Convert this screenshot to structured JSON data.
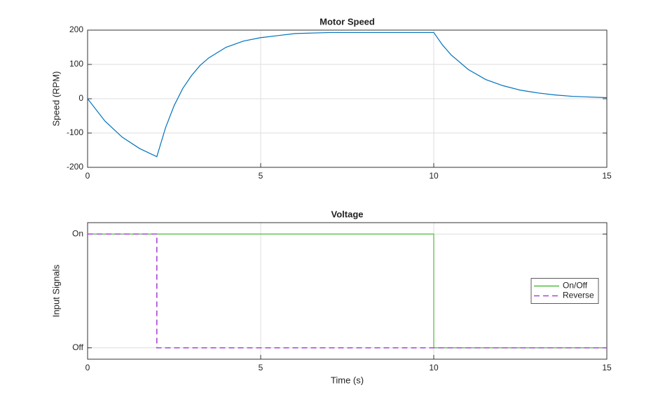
{
  "chart_data": [
    {
      "type": "line",
      "title": "Motor Speed",
      "ylabel": "Speed (RPM)",
      "x": [
        0,
        0.5,
        1,
        1.5,
        2,
        2.25,
        2.5,
        2.75,
        3,
        3.25,
        3.5,
        4,
        4.5,
        5,
        5.5,
        6,
        7,
        8,
        9,
        10,
        10.25,
        10.5,
        11,
        11.5,
        12,
        12.5,
        13,
        13.5,
        14,
        14.5,
        15
      ],
      "series": [
        {
          "color": "#0072bd",
          "values": [
            0,
            -65,
            -112,
            -145,
            -169,
            -85,
            -20,
            30,
            67,
            97,
            119,
            150,
            168,
            178,
            184,
            190,
            193,
            193,
            193,
            193,
            157,
            128,
            85,
            56,
            38,
            25,
            17,
            11,
            7,
            5,
            3
          ]
        }
      ],
      "xlim": [
        0,
        15
      ],
      "xticks": [
        0,
        5,
        10,
        15
      ],
      "ylim": [
        -200,
        200
      ],
      "yticks": [
        -200,
        -100,
        0,
        100,
        200
      ],
      "grid": true
    },
    {
      "type": "line",
      "title": "Voltage",
      "xlabel": "Time (s)",
      "ylabel": "Input Signals",
      "series": [
        {
          "name": "On/Off",
          "color": "#4dbe3c",
          "style": "solid",
          "x": [
            0,
            10,
            10,
            15
          ],
          "values": [
            1,
            1,
            0,
            0
          ]
        },
        {
          "name": "Reverse",
          "color": "#a845d6",
          "style": "dashed",
          "x": [
            0,
            2,
            2,
            15
          ],
          "values": [
            1,
            1,
            0,
            0
          ]
        }
      ],
      "xlim": [
        0,
        15
      ],
      "xticks": [
        0,
        5,
        10,
        15
      ],
      "ylim": [
        -0.1,
        1.1
      ],
      "yticks": [
        {
          "value": 0,
          "label": "Off"
        },
        {
          "value": 1,
          "label": "On"
        }
      ],
      "grid": true,
      "legend": "east"
    }
  ]
}
